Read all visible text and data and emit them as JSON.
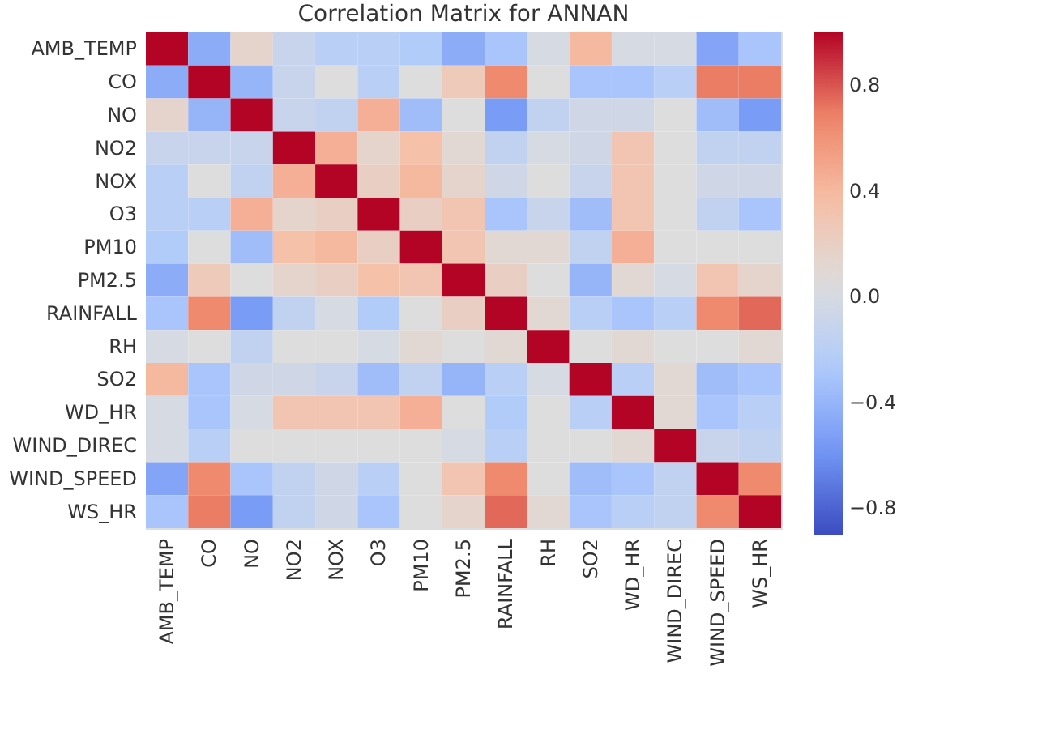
{
  "chart_data": {
    "type": "heatmap",
    "title": "Correlation Matrix for ANNAN",
    "categories": [
      "AMB_TEMP",
      "CO",
      "NO",
      "NO2",
      "NOX",
      "O3",
      "PM10",
      "PM2.5",
      "RAINFALL",
      "RH",
      "SO2",
      "WD_HR",
      "WIND_DIREC",
      "WIND_SPEED",
      "WS_HR"
    ],
    "y_categories": [
      "AMB_TEMP",
      "CO",
      "NO",
      "NO2",
      "NOX",
      "O3",
      "PM10",
      "PM2.5",
      "RAINFALL",
      "RH",
      "SO2",
      "WD_HR",
      "WIND_DIREC",
      "WIND_SPEED",
      "WS_HR"
    ],
    "cells": [
      [
        1,
        -0.45,
        0.15,
        -0.1,
        -0.2,
        -0.2,
        -0.25,
        -0.45,
        -0.3,
        0.0,
        0.4,
        0.0,
        0.0,
        -0.5,
        -0.3
      ],
      [
        -0.45,
        1,
        -0.4,
        -0.1,
        0.05,
        -0.2,
        0.05,
        0.25,
        0.65,
        0.05,
        -0.3,
        -0.3,
        -0.2,
        0.7,
        0.7
      ],
      [
        0.15,
        -0.4,
        1,
        -0.1,
        -0.15,
        0.45,
        -0.35,
        0.05,
        -0.55,
        -0.15,
        -0.05,
        -0.05,
        0.05,
        -0.35,
        -0.55
      ],
      [
        -0.1,
        -0.1,
        -0.1,
        1,
        0.45,
        0.15,
        0.35,
        0.1,
        -0.15,
        0.0,
        -0.05,
        0.3,
        0.05,
        -0.15,
        -0.15
      ],
      [
        -0.2,
        0.05,
        -0.15,
        0.45,
        1,
        0.2,
        0.4,
        0.15,
        -0.05,
        0.05,
        -0.1,
        0.3,
        0.05,
        -0.05,
        -0.05
      ],
      [
        -0.2,
        -0.2,
        0.45,
        0.15,
        0.2,
        1,
        0.2,
        0.3,
        -0.3,
        -0.1,
        -0.35,
        0.3,
        0.05,
        -0.15,
        -0.3
      ],
      [
        -0.25,
        0.05,
        -0.35,
        0.35,
        0.4,
        0.2,
        1,
        0.3,
        0.1,
        0.1,
        -0.15,
        0.45,
        0.05,
        0.05,
        0.05
      ],
      [
        -0.45,
        0.25,
        0.05,
        0.15,
        0.2,
        0.35,
        0.3,
        1,
        0.2,
        0.05,
        -0.4,
        0.1,
        0.0,
        0.3,
        0.15
      ],
      [
        -0.3,
        0.65,
        -0.55,
        -0.15,
        0.0,
        -0.25,
        0.05,
        0.2,
        1,
        0.1,
        -0.2,
        -0.3,
        -0.2,
        0.65,
        0.75
      ],
      [
        0.0,
        0.05,
        -0.15,
        0.05,
        0.05,
        0.0,
        0.1,
        0.05,
        0.1,
        1,
        0.05,
        0.1,
        0.05,
        0.05,
        0.1
      ],
      [
        0.4,
        -0.3,
        -0.05,
        -0.05,
        -0.1,
        -0.35,
        -0.15,
        -0.4,
        -0.2,
        0.0,
        1,
        -0.2,
        0.1,
        -0.35,
        -0.3
      ],
      [
        0.0,
        -0.3,
        0.0,
        0.3,
        0.3,
        0.3,
        0.45,
        0.05,
        -0.25,
        0.05,
        -0.2,
        1,
        0.1,
        -0.3,
        -0.2
      ],
      [
        0.0,
        -0.2,
        0.05,
        0.05,
        0.05,
        0.05,
        0.05,
        0.0,
        -0.2,
        0.05,
        0.05,
        0.1,
        1,
        -0.1,
        -0.15
      ],
      [
        -0.5,
        0.65,
        -0.3,
        -0.15,
        -0.05,
        -0.2,
        0.05,
        0.3,
        0.65,
        0.05,
        -0.35,
        -0.3,
        -0.15,
        1,
        0.65
      ],
      [
        -0.3,
        0.7,
        -0.55,
        -0.15,
        -0.05,
        -0.3,
        0.05,
        0.15,
        0.75,
        0.1,
        -0.3,
        -0.2,
        -0.15,
        0.65,
        1
      ]
    ],
    "clim": [
      -0.9,
      1
    ],
    "cticks": [
      -0.8,
      -0.4,
      {
        "value": 0,
        "label": "0.0"
      },
      0.4,
      0.8
    ]
  }
}
